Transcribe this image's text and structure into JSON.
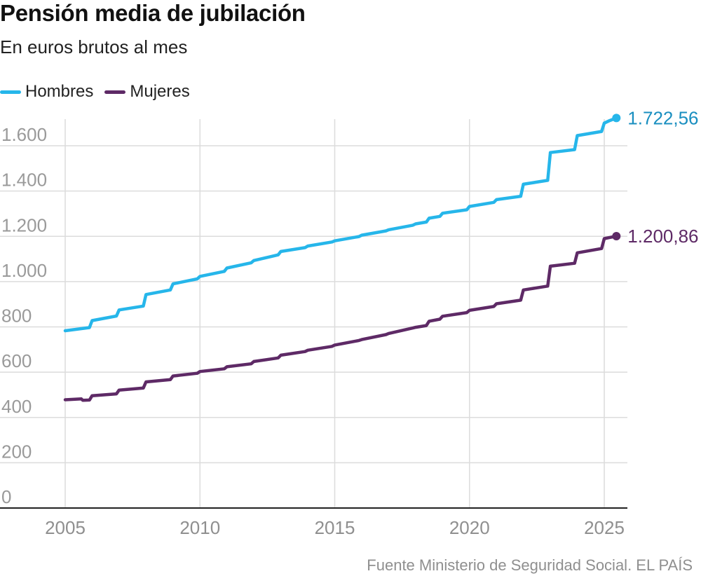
{
  "title": "Pensión media de jubilación",
  "subtitle": "En euros brutos al mes",
  "source": "Fuente Ministerio de Seguridad Social. EL PAÍS",
  "legend": [
    {
      "label": "Hombres",
      "color": "#26b6ea"
    },
    {
      "label": "Mujeres",
      "color": "#5e2a66"
    }
  ],
  "chart_data": {
    "type": "line",
    "title": "Pensión media de jubilación",
    "subtitle": "En euros brutos al mes",
    "xlabel": "",
    "ylabel": "",
    "xlim": [
      2005,
      2025.5
    ],
    "ylim": [
      0,
      1650
    ],
    "x_ticks": [
      2005,
      2010,
      2015,
      2020,
      2025
    ],
    "y_ticks": [
      0,
      200,
      400,
      600,
      800,
      1000,
      1200,
      1400,
      1600
    ],
    "y_tick_labels": [
      "0",
      "200",
      "400",
      "600",
      "800",
      "1.000",
      "1.200",
      "1.400",
      "1.600"
    ],
    "grid": true,
    "legend_position": "top-left",
    "series": [
      {
        "name": "Hombres",
        "color": "#26b6ea",
        "end_label": "1.722,56",
        "points": [
          [
            2005.0,
            783
          ],
          [
            2005.9,
            797
          ],
          [
            2006.0,
            828
          ],
          [
            2006.9,
            848
          ],
          [
            2007.0,
            875
          ],
          [
            2007.9,
            892
          ],
          [
            2008.0,
            943
          ],
          [
            2008.9,
            963
          ],
          [
            2009.0,
            990
          ],
          [
            2009.9,
            1012
          ],
          [
            2010.0,
            1023
          ],
          [
            2010.9,
            1045
          ],
          [
            2011.0,
            1060
          ],
          [
            2011.9,
            1083
          ],
          [
            2012.0,
            1093
          ],
          [
            2012.9,
            1118
          ],
          [
            2013.0,
            1133
          ],
          [
            2013.9,
            1150
          ],
          [
            2014.0,
            1157
          ],
          [
            2014.9,
            1175
          ],
          [
            2015.0,
            1180
          ],
          [
            2015.9,
            1199
          ],
          [
            2016.0,
            1205
          ],
          [
            2016.9,
            1224
          ],
          [
            2017.0,
            1229
          ],
          [
            2017.9,
            1249
          ],
          [
            2018.0,
            1255
          ],
          [
            2018.4,
            1263
          ],
          [
            2018.5,
            1280
          ],
          [
            2018.9,
            1288
          ],
          [
            2019.0,
            1302
          ],
          [
            2019.9,
            1317
          ],
          [
            2020.0,
            1332
          ],
          [
            2020.9,
            1350
          ],
          [
            2021.0,
            1362
          ],
          [
            2021.9,
            1377
          ],
          [
            2022.0,
            1430
          ],
          [
            2022.9,
            1447
          ],
          [
            2023.0,
            1570
          ],
          [
            2023.9,
            1583
          ],
          [
            2024.0,
            1645
          ],
          [
            2024.9,
            1663
          ],
          [
            2025.0,
            1700
          ],
          [
            2025.2,
            1711
          ],
          [
            2025.45,
            1722.56
          ]
        ]
      },
      {
        "name": "Mujeres",
        "color": "#5e2a66",
        "end_label": "1.200,86",
        "points": [
          [
            2005.0,
            478
          ],
          [
            2005.6,
            482
          ],
          [
            2005.65,
            476
          ],
          [
            2005.9,
            477
          ],
          [
            2006.0,
            496
          ],
          [
            2006.9,
            504
          ],
          [
            2007.0,
            521
          ],
          [
            2007.9,
            530
          ],
          [
            2008.0,
            557
          ],
          [
            2008.9,
            567
          ],
          [
            2009.0,
            583
          ],
          [
            2009.9,
            595
          ],
          [
            2010.0,
            603
          ],
          [
            2010.9,
            615
          ],
          [
            2011.0,
            624
          ],
          [
            2011.9,
            637
          ],
          [
            2012.0,
            647
          ],
          [
            2012.9,
            663
          ],
          [
            2013.0,
            675
          ],
          [
            2013.9,
            691
          ],
          [
            2014.0,
            697
          ],
          [
            2014.9,
            714
          ],
          [
            2015.0,
            720
          ],
          [
            2015.9,
            740
          ],
          [
            2016.0,
            744
          ],
          [
            2016.9,
            766
          ],
          [
            2017.0,
            771
          ],
          [
            2017.9,
            795
          ],
          [
            2018.0,
            798
          ],
          [
            2018.4,
            806
          ],
          [
            2018.5,
            825
          ],
          [
            2018.9,
            834
          ],
          [
            2019.0,
            847
          ],
          [
            2019.9,
            863
          ],
          [
            2020.0,
            873
          ],
          [
            2020.9,
            890
          ],
          [
            2021.0,
            902
          ],
          [
            2021.9,
            918
          ],
          [
            2022.0,
            963
          ],
          [
            2022.9,
            980
          ],
          [
            2023.0,
            1068
          ],
          [
            2023.9,
            1081
          ],
          [
            2024.0,
            1127
          ],
          [
            2024.9,
            1146
          ],
          [
            2025.0,
            1190
          ],
          [
            2025.2,
            1195
          ],
          [
            2025.45,
            1200.86
          ]
        ]
      }
    ]
  }
}
